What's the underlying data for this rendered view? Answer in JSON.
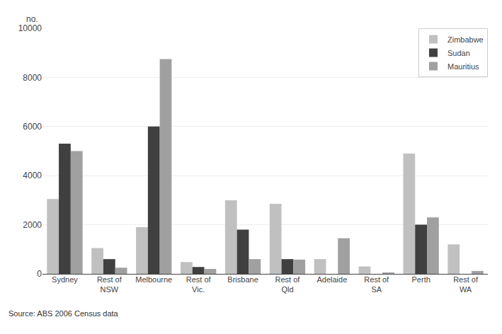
{
  "chart_data": {
    "type": "bar",
    "categories": [
      "Sydney",
      "Rest of\nNSW",
      "Melbourne",
      "Rest of\nVic.",
      "Brisbane",
      "Rest of\nQld",
      "Adelaide",
      "Rest of\nSA",
      "Perth",
      "Rest of\nWA"
    ],
    "series": [
      {
        "name": "Zimbabwe",
        "color": "#c0c0c0",
        "values": [
          3050,
          1050,
          1900,
          480,
          3000,
          2850,
          600,
          300,
          4900,
          1200
        ]
      },
      {
        "name": "Sudan",
        "color": "#404040",
        "values": [
          5300,
          600,
          6000,
          280,
          1800,
          600,
          0,
          0,
          2000,
          0
        ]
      },
      {
        "name": "Mauritius",
        "color": "#a0a0a0",
        "values": [
          5000,
          250,
          8750,
          200,
          600,
          580,
          1450,
          40,
          2300,
          120
        ]
      }
    ],
    "ylabel": "no.",
    "annotations": [
      "Source: ABS 2006 Census data"
    ],
    "ylim": [
      0,
      10000
    ],
    "yticks": [
      0,
      2000,
      4000,
      6000,
      8000,
      10000
    ],
    "grid": true,
    "legend": "upper right"
  }
}
